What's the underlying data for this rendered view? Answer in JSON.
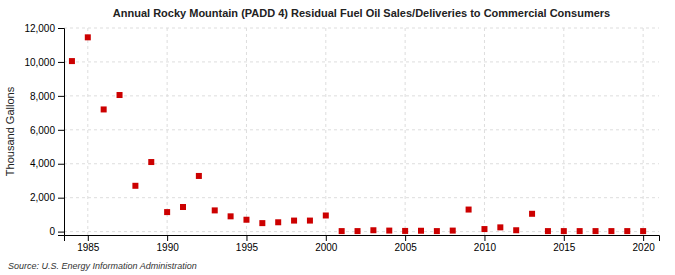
{
  "chart_data": {
    "type": "scatter",
    "title": "Annual Rocky Mountain (PADD 4) Residual Fuel Oil Sales/Deliveries to Commercial Consumers",
    "ylabel": "Thousand Gallons",
    "annotations": [
      "Source: U.S. Energy Information Administration"
    ],
    "x": [
      1984,
      1985,
      1986,
      1987,
      1988,
      1989,
      1990,
      1991,
      1992,
      1993,
      1994,
      1995,
      1996,
      1997,
      1998,
      1999,
      2000,
      2001,
      2002,
      2003,
      2004,
      2005,
      2006,
      2007,
      2008,
      2009,
      2010,
      2011,
      2012,
      2013,
      2014,
      2015,
      2016,
      2017,
      2018,
      2019,
      2020
    ],
    "values": [
      10050,
      11450,
      7200,
      8050,
      2700,
      4100,
      1150,
      1450,
      3280,
      1250,
      900,
      700,
      500,
      550,
      650,
      650,
      950,
      30,
      30,
      80,
      60,
      40,
      50,
      30,
      60,
      1300,
      150,
      250,
      80,
      1050,
      30,
      30,
      30,
      30,
      30,
      30,
      30
    ],
    "color": "#cc0000",
    "marker": "square",
    "xlim": [
      1983.5,
      2021
    ],
    "ylim": [
      -200,
      12000
    ],
    "xticks": [
      1985,
      1990,
      1995,
      2000,
      2005,
      2010,
      2015,
      2020
    ],
    "yticks": [
      0,
      {
        "value": 2000,
        "label": "2,000"
      },
      {
        "value": 4000,
        "label": "4,000"
      },
      {
        "value": 6000,
        "label": "6,000"
      },
      {
        "value": 8000,
        "label": "8,000"
      },
      {
        "value": 10000,
        "label": "10,000"
      },
      {
        "value": 12000,
        "label": "12,000"
      }
    ],
    "grid": true
  }
}
